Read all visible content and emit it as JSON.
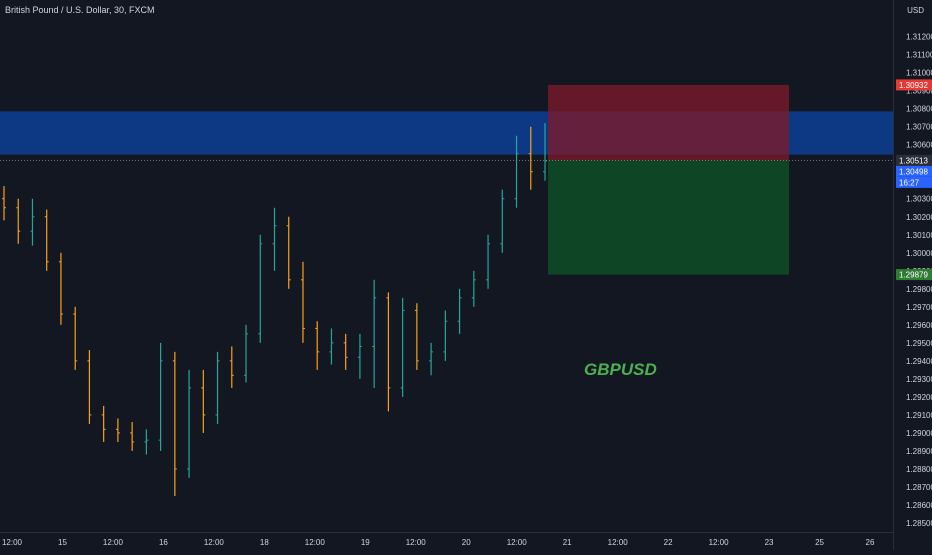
{
  "header": {
    "title": "British Pound / U.S. Dollar, 30, FXCM",
    "currency": "USD"
  },
  "colors": {
    "background": "#131722",
    "up": "#26a69a",
    "down": "#f7a21b",
    "zone": "#0d3b8a",
    "stop": "#7a1a2a",
    "target": "#0e4a25",
    "price_badge": "#2962ff",
    "stop_badge": "#e53935",
    "target_badge": "#2e7d32",
    "annotation": "#4caf50"
  },
  "chart_data": {
    "type": "candlestick",
    "ylim": [
      1.2845,
      1.3137
    ],
    "y_ticks": [
      "1.31200",
      "1.31100",
      "1.31000",
      "1.30900",
      "1.30800",
      "1.30700",
      "1.30600",
      "1.30500",
      "1.30400",
      "1.30300",
      "1.30200",
      "1.30100",
      "1.30000",
      "1.29900",
      "1.29800",
      "1.29700",
      "1.29600",
      "1.29500",
      "1.29400",
      "1.29300",
      "1.29200",
      "1.29100",
      "1.29000",
      "1.28900",
      "1.28800",
      "1.28700",
      "1.28600",
      "1.28500"
    ],
    "x_ticks": [
      "12:00",
      "15",
      "12:00",
      "16",
      "12:00",
      "18",
      "12:00",
      "19",
      "12:00",
      "20",
      "12:00",
      "21",
      "12:00",
      "22",
      "12:00",
      "23",
      "25",
      "26"
    ],
    "resistance_zone": [
      1.30545,
      1.30785
    ],
    "position": {
      "side": "short",
      "entry": 1.30513,
      "stop": 1.30932,
      "target": 1.29879
    },
    "badges": {
      "last_price": "1.30513",
      "bid": "1.30498",
      "countdown": "16:27",
      "stop": "1.30932",
      "target": "1.29879"
    },
    "annotation": "GBPUSD",
    "series": [
      {
        "time_pos": 0.0,
        "o": 1.303,
        "h": 1.3037,
        "l": 1.3018,
        "c": 1.3025
      },
      {
        "time_pos": 0.02,
        "o": 1.3025,
        "h": 1.303,
        "l": 1.3005,
        "c": 1.3012
      },
      {
        "time_pos": 0.04,
        "o": 1.3012,
        "h": 1.303,
        "l": 1.3004,
        "c": 1.302
      },
      {
        "time_pos": 0.06,
        "o": 1.302,
        "h": 1.3024,
        "l": 1.299,
        "c": 1.2995
      },
      {
        "time_pos": 0.08,
        "o": 1.2995,
        "h": 1.3,
        "l": 1.296,
        "c": 1.2966
      },
      {
        "time_pos": 0.1,
        "o": 1.2966,
        "h": 1.297,
        "l": 1.2935,
        "c": 1.294
      },
      {
        "time_pos": 0.12,
        "o": 1.294,
        "h": 1.2946,
        "l": 1.2905,
        "c": 1.291
      },
      {
        "time_pos": 0.14,
        "o": 1.291,
        "h": 1.2915,
        "l": 1.2895,
        "c": 1.2902
      },
      {
        "time_pos": 0.16,
        "o": 1.2902,
        "h": 1.2908,
        "l": 1.2895,
        "c": 1.29
      },
      {
        "time_pos": 0.18,
        "o": 1.29,
        "h": 1.2906,
        "l": 1.289,
        "c": 1.2895
      },
      {
        "time_pos": 0.2,
        "o": 1.2895,
        "h": 1.2902,
        "l": 1.2888,
        "c": 1.2896
      },
      {
        "time_pos": 0.22,
        "o": 1.2896,
        "h": 1.295,
        "l": 1.289,
        "c": 1.294
      },
      {
        "time_pos": 0.24,
        "o": 1.294,
        "h": 1.2945,
        "l": 1.2865,
        "c": 1.288
      },
      {
        "time_pos": 0.26,
        "o": 1.288,
        "h": 1.2935,
        "l": 1.2875,
        "c": 1.2925
      },
      {
        "time_pos": 0.28,
        "o": 1.2925,
        "h": 1.2935,
        "l": 1.29,
        "c": 1.291
      },
      {
        "time_pos": 0.3,
        "o": 1.291,
        "h": 1.2945,
        "l": 1.2905,
        "c": 1.294
      },
      {
        "time_pos": 0.32,
        "o": 1.294,
        "h": 1.2948,
        "l": 1.2925,
        "c": 1.2932
      },
      {
        "time_pos": 0.34,
        "o": 1.2932,
        "h": 1.296,
        "l": 1.2928,
        "c": 1.2955
      },
      {
        "time_pos": 0.36,
        "o": 1.2955,
        "h": 1.301,
        "l": 1.295,
        "c": 1.3005
      },
      {
        "time_pos": 0.38,
        "o": 1.3005,
        "h": 1.3025,
        "l": 1.299,
        "c": 1.3015
      },
      {
        "time_pos": 0.4,
        "o": 1.3015,
        "h": 1.302,
        "l": 1.298,
        "c": 1.2985
      },
      {
        "time_pos": 0.42,
        "o": 1.2985,
        "h": 1.2995,
        "l": 1.295,
        "c": 1.2958
      },
      {
        "time_pos": 0.44,
        "o": 1.2958,
        "h": 1.2962,
        "l": 1.2935,
        "c": 1.2945
      },
      {
        "time_pos": 0.46,
        "o": 1.2945,
        "h": 1.2958,
        "l": 1.2938,
        "c": 1.295
      },
      {
        "time_pos": 0.48,
        "o": 1.295,
        "h": 1.2955,
        "l": 1.2935,
        "c": 1.2942
      },
      {
        "time_pos": 0.5,
        "o": 1.2942,
        "h": 1.2955,
        "l": 1.293,
        "c": 1.2948
      },
      {
        "time_pos": 0.52,
        "o": 1.2948,
        "h": 1.2985,
        "l": 1.2925,
        "c": 1.2975
      },
      {
        "time_pos": 0.54,
        "o": 1.2975,
        "h": 1.2978,
        "l": 1.2912,
        "c": 1.2925
      },
      {
        "time_pos": 0.56,
        "o": 1.2925,
        "h": 1.2975,
        "l": 1.292,
        "c": 1.2968
      },
      {
        "time_pos": 0.58,
        "o": 1.2968,
        "h": 1.2972,
        "l": 1.2935,
        "c": 1.294
      },
      {
        "time_pos": 0.6,
        "o": 1.294,
        "h": 1.295,
        "l": 1.2932,
        "c": 1.2945
      },
      {
        "time_pos": 0.62,
        "o": 1.2945,
        "h": 1.2968,
        "l": 1.294,
        "c": 1.2962
      },
      {
        "time_pos": 0.64,
        "o": 1.2962,
        "h": 1.298,
        "l": 1.2955,
        "c": 1.2975
      },
      {
        "time_pos": 0.66,
        "o": 1.2975,
        "h": 1.299,
        "l": 1.297,
        "c": 1.2985
      },
      {
        "time_pos": 0.68,
        "o": 1.2985,
        "h": 1.301,
        "l": 1.298,
        "c": 1.3005
      },
      {
        "time_pos": 0.7,
        "o": 1.3005,
        "h": 1.3035,
        "l": 1.3,
        "c": 1.303
      },
      {
        "time_pos": 0.72,
        "o": 1.303,
        "h": 1.3065,
        "l": 1.3025,
        "c": 1.3055
      },
      {
        "time_pos": 0.74,
        "o": 1.3055,
        "h": 1.307,
        "l": 1.3035,
        "c": 1.3045
      },
      {
        "time_pos": 0.76,
        "o": 1.3045,
        "h": 1.3072,
        "l": 1.304,
        "c": 1.3051
      }
    ]
  }
}
